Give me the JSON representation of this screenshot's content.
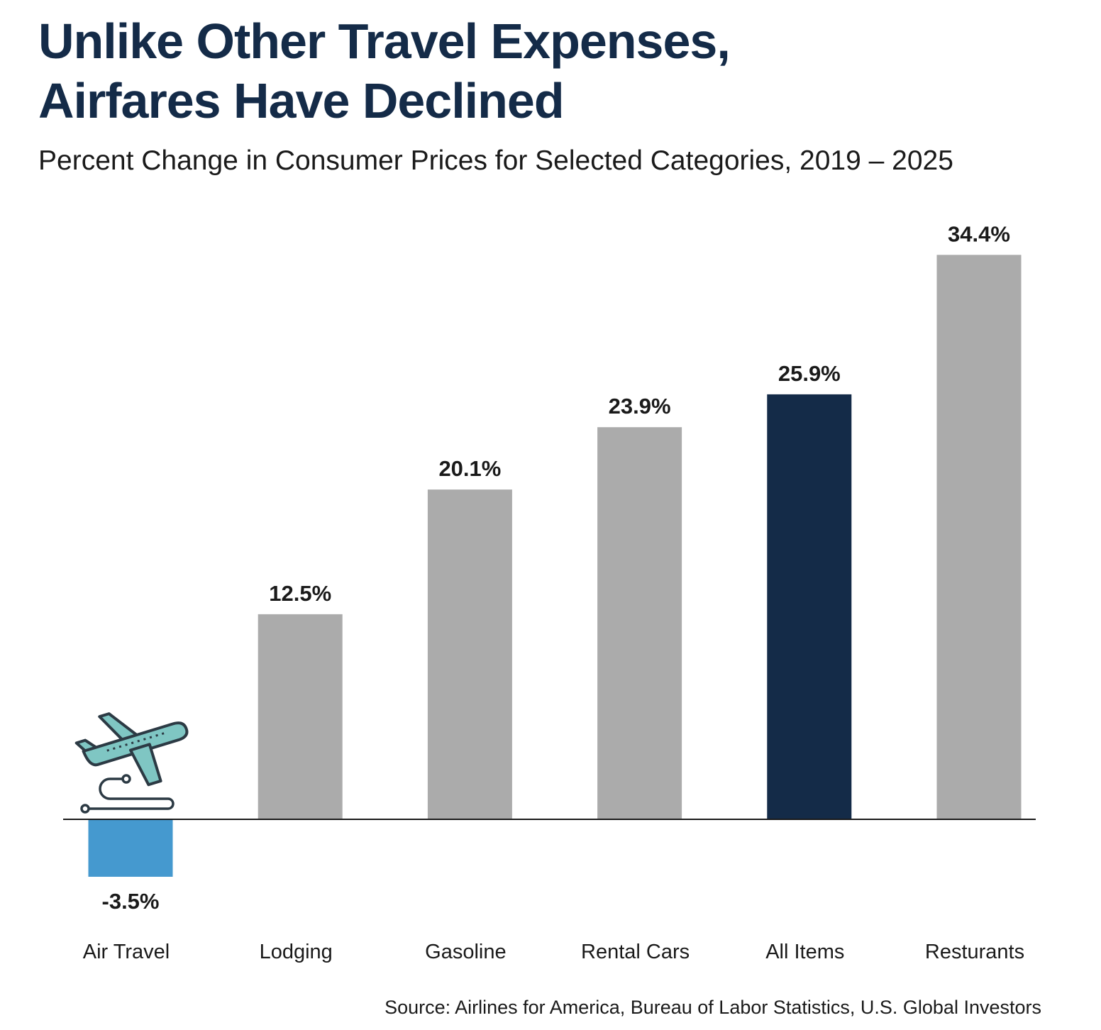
{
  "title_line1": "Unlike Other Travel Expenses,",
  "title_line2": "Airfares Have Declined",
  "subtitle": "Percent Change in Consumer Prices for Selected Categories, 2019 – 2025",
  "source": "Source: Airlines for America, Bureau of Labor Statistics, U.S. Global Investors",
  "icon": "airplane-takeoff-icon",
  "colors": {
    "title": "#142b48",
    "negative_bar": "#4599cf",
    "highlight_bar": "#142b48",
    "default_bar": "#ababab",
    "axis": "#1a1a1a",
    "icon_fill": "#7fc6c3",
    "icon_stroke": "#2c3a44"
  },
  "chart_data": {
    "type": "bar",
    "title": "Unlike Other Travel Expenses, Airfares Have Declined",
    "subtitle": "Percent Change in Consumer Prices for Selected Categories, 2019 – 2025",
    "xlabel": "",
    "ylabel": "",
    "categories": [
      "Air Travel",
      "Lodging",
      "Gasoline",
      "Rental Cars",
      "All Items",
      "Resturants"
    ],
    "values": [
      -3.5,
      12.5,
      20.1,
      23.9,
      25.9,
      34.4
    ],
    "value_labels": [
      "-3.5%",
      "12.5%",
      "20.1%",
      "23.9%",
      "25.9%",
      "34.4%"
    ],
    "highlight": "All Items",
    "ylim": [
      -3.5,
      34.4
    ],
    "grid": false,
    "legend": "none"
  }
}
